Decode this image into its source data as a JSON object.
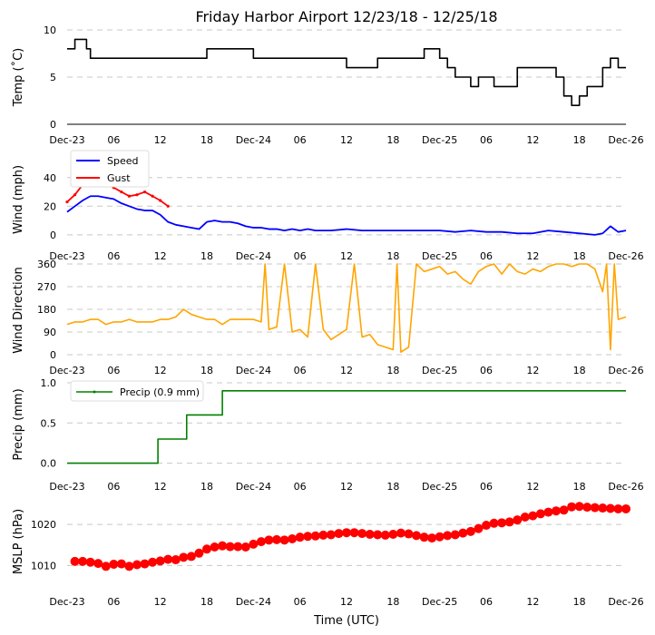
{
  "title": "Friday Harbor Airport 12/23/18 - 12/25/18",
  "xlabel": "Time (UTC)",
  "x_ticks": [
    "Dec-23",
    "06",
    "12",
    "18",
    "Dec-24",
    "06",
    "12",
    "18",
    "Dec-25",
    "06",
    "12",
    "18",
    "Dec-26"
  ],
  "colors": {
    "temp": "#000000",
    "speed": "#0000ff",
    "gust": "#ff0000",
    "direction": "#ffa500",
    "precip": "#008000",
    "pressure": "#ff0000",
    "grid": "#c8c8c8"
  },
  "chart_data": [
    {
      "id": "temp",
      "type": "line",
      "ylabel": "Temp (˚C)",
      "xlim": [
        0,
        72
      ],
      "ylim": [
        0,
        10
      ],
      "yticks": [
        0,
        5,
        10
      ],
      "ytick_labels": [
        "0",
        "5",
        "10"
      ],
      "series": [
        {
          "name": "Temperature",
          "step": true,
          "x": [
            0,
            1,
            2,
            2.5,
            3,
            5,
            8,
            12,
            14,
            16,
            18,
            20,
            23,
            24,
            26,
            30,
            35,
            36,
            38,
            40,
            42,
            44,
            46,
            47,
            48,
            49,
            50,
            51,
            52,
            53,
            54,
            55,
            57,
            58,
            59,
            60,
            62,
            63,
            64,
            65,
            66,
            67,
            68,
            69,
            70,
            71,
            72
          ],
          "y": [
            8,
            9,
            9,
            8,
            7,
            7,
            7,
            7,
            7,
            7,
            8,
            8,
            8,
            7,
            7,
            7,
            7,
            6,
            6,
            7,
            7,
            7,
            8,
            8,
            7,
            6,
            5,
            5,
            4,
            5,
            5,
            4,
            4,
            6,
            6,
            6,
            6,
            5,
            3,
            2,
            3,
            4,
            4,
            6,
            7,
            6,
            6
          ]
        }
      ]
    },
    {
      "id": "wind",
      "type": "line",
      "ylabel": "Wind (mph)",
      "xlim": [
        0,
        72
      ],
      "ylim": [
        -2,
        50
      ],
      "yticks": [
        0,
        20,
        40
      ],
      "ytick_labels": [
        "0",
        "20",
        "40"
      ],
      "legend": "top-left",
      "series": [
        {
          "name": "Speed",
          "x": [
            0,
            1,
            2,
            3,
            4,
            5,
            6,
            7,
            8,
            9,
            10,
            11,
            12,
            13,
            14,
            15,
            16,
            17,
            18,
            19,
            20,
            21,
            22,
            23,
            24,
            25,
            26,
            27,
            28,
            29,
            30,
            31,
            32,
            34,
            36,
            38,
            40,
            42,
            44,
            46,
            48,
            50,
            52,
            54,
            56,
            58,
            60,
            62,
            64,
            66,
            68,
            69,
            70,
            71,
            72
          ],
          "y": [
            16,
            20,
            24,
            27,
            27,
            26,
            25,
            22,
            20,
            18,
            17,
            17,
            14,
            9,
            7,
            6,
            5,
            4,
            9,
            10,
            9,
            9,
            8,
            6,
            5,
            5,
            4,
            4,
            3,
            4,
            3,
            4,
            3,
            3,
            4,
            3,
            3,
            3,
            3,
            3,
            3,
            2,
            3,
            2,
            2,
            1,
            1,
            3,
            2,
            1,
            0,
            1,
            6,
            2,
            3
          ]
        },
        {
          "name": "Gust",
          "x": [
            0,
            1,
            2,
            3,
            4,
            5,
            6,
            7,
            8,
            9,
            10,
            11,
            12,
            13
          ],
          "y": [
            23,
            28,
            35,
            40,
            38,
            36,
            33,
            30,
            27,
            28,
            30,
            27,
            24,
            20
          ]
        }
      ]
    },
    {
      "id": "direction",
      "type": "line",
      "ylabel": "Wind Direction",
      "xlim": [
        0,
        72
      ],
      "ylim": [
        0,
        360
      ],
      "yticks": [
        0,
        90,
        180,
        270,
        360
      ],
      "ytick_labels": [
        "0",
        "90",
        "180",
        "270",
        "360"
      ],
      "series": [
        {
          "name": "Direction",
          "x": [
            0,
            1,
            2,
            3,
            4,
            5,
            6,
            7,
            8,
            9,
            10,
            11,
            12,
            13,
            14,
            15,
            16,
            17,
            18,
            19,
            20,
            21,
            22,
            23,
            24,
            25,
            25.5,
            26,
            27,
            28,
            29,
            30,
            31,
            32,
            33,
            34,
            35,
            36,
            37,
            38,
            39,
            40,
            41,
            42,
            42.5,
            43,
            44,
            45,
            46,
            47,
            48,
            49,
            50,
            51,
            52,
            53,
            54,
            55,
            56,
            57,
            58,
            59,
            60,
            61,
            62,
            63,
            64,
            65,
            66,
            67,
            68,
            69,
            69.5,
            70,
            70.5,
            71,
            72
          ],
          "y": [
            120,
            130,
            130,
            140,
            140,
            120,
            130,
            130,
            140,
            130,
            130,
            130,
            140,
            140,
            150,
            180,
            160,
            150,
            140,
            140,
            120,
            140,
            140,
            140,
            140,
            130,
            360,
            100,
            110,
            360,
            90,
            100,
            70,
            360,
            100,
            60,
            80,
            100,
            360,
            70,
            80,
            40,
            30,
            20,
            360,
            10,
            30,
            360,
            330,
            340,
            350,
            320,
            330,
            300,
            280,
            330,
            350,
            360,
            320,
            360,
            330,
            320,
            340,
            330,
            350,
            360,
            360,
            350,
            360,
            360,
            340,
            250,
            360,
            20,
            360,
            140,
            150
          ]
        }
      ]
    },
    {
      "id": "precip",
      "type": "line",
      "ylabel": "Precip (mm)",
      "xlim": [
        0,
        72
      ],
      "ylim": [
        -0.05,
        1.0
      ],
      "yticks": [
        0.0,
        0.5,
        1.0
      ],
      "ytick_labels": [
        "0.0",
        "0.5",
        "1.0"
      ],
      "legend": "top-left",
      "series": [
        {
          "name": "Precip (0.9 mm)",
          "step": true,
          "x": [
            0,
            11.5,
            11.7,
            15.2,
            15.4,
            19.8,
            20,
            72
          ],
          "y": [
            0,
            0,
            0.3,
            0.3,
            0.6,
            0.6,
            0.9,
            0.9
          ]
        }
      ]
    },
    {
      "id": "pressure",
      "type": "scatter",
      "ylabel": "MSLP (hPa)",
      "xlim": [
        0,
        72
      ],
      "ylim": [
        1005,
        1026
      ],
      "yticks": [
        1010,
        1020
      ],
      "ytick_labels": [
        "1010",
        "1020"
      ],
      "series": [
        {
          "name": "MSLP",
          "x": [
            1,
            2,
            3,
            4,
            5,
            6,
            7,
            8,
            9,
            10,
            11,
            12,
            13,
            14,
            15,
            16,
            17,
            18,
            19,
            20,
            21,
            22,
            23,
            24,
            25,
            26,
            27,
            28,
            29,
            30,
            31,
            32,
            33,
            34,
            35,
            36,
            37,
            38,
            39,
            40,
            41,
            42,
            43,
            44,
            45,
            46,
            47,
            48,
            49,
            50,
            51,
            52,
            53,
            54,
            55,
            56,
            57,
            58,
            59,
            60,
            61,
            62,
            63,
            64,
            65,
            66,
            67,
            68,
            69,
            70,
            71,
            72
          ],
          "y": [
            1011,
            1011,
            1010.8,
            1010.5,
            1009.8,
            1010.3,
            1010.4,
            1009.8,
            1010.2,
            1010.4,
            1010.8,
            1011.1,
            1011.5,
            1011.4,
            1012,
            1012.2,
            1013,
            1014,
            1014.5,
            1014.8,
            1014.6,
            1014.6,
            1014.5,
            1015.2,
            1015.8,
            1016.2,
            1016.3,
            1016.2,
            1016.5,
            1016.9,
            1017.1,
            1017.2,
            1017.4,
            1017.5,
            1017.8,
            1018,
            1018,
            1017.8,
            1017.6,
            1017.5,
            1017.4,
            1017.6,
            1017.9,
            1017.7,
            1017.3,
            1016.9,
            1016.7,
            1017,
            1017.3,
            1017.5,
            1017.9,
            1018.3,
            1019,
            1019.8,
            1020.3,
            1020.4,
            1020.6,
            1021.1,
            1021.8,
            1022.1,
            1022.6,
            1023,
            1023.3,
            1023.5,
            1024.3,
            1024.4,
            1024.2,
            1024.1,
            1024,
            1023.9,
            1023.8,
            1023.8
          ]
        }
      ]
    }
  ]
}
